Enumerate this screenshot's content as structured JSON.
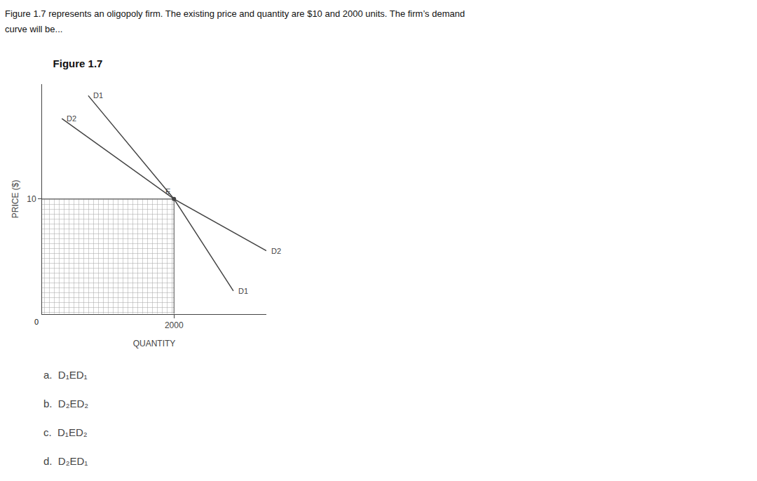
{
  "chart_data": {
    "type": "line",
    "title": "Figure 1.7",
    "subtitle": [
      "Figure 1.7 represents an oligopoly firm. The existing price and quantity are $10 and 2000 units. The firm’s demand",
      "curve will be..."
    ],
    "xlabel": "QUANTITY",
    "ylabel": "PRICE ($)",
    "series": [
      {
        "name": "D1",
        "color": "#444444",
        "x": [
          700,
          2000,
          2900
        ],
        "values": [
          19,
          10,
          2
        ]
      },
      {
        "name": "D2",
        "color": "#444444",
        "x": [
          300,
          2000,
          3400
        ],
        "values": [
          17,
          10,
          5.5
        ]
      }
    ],
    "equilibrium": {
      "x": 2000,
      "y": 10,
      "label": "E",
      "color": "#444444"
    },
    "annotations": [
      {
        "text": "0",
        "x": 0,
        "y": 0
      },
      {
        "text": "a.  D₁ED₁"
      },
      {
        "text": "b.  D₂ED₂"
      },
      {
        "text": "c.  D₁ED₂"
      },
      {
        "text": "d.  D₂ED₁"
      }
    ],
    "xlim": [
      0,
      3400
    ],
    "ylim": [
      0,
      20
    ],
    "xticks": [
      2000
    ],
    "yticks": [
      10
    ],
    "grid": false
  }
}
